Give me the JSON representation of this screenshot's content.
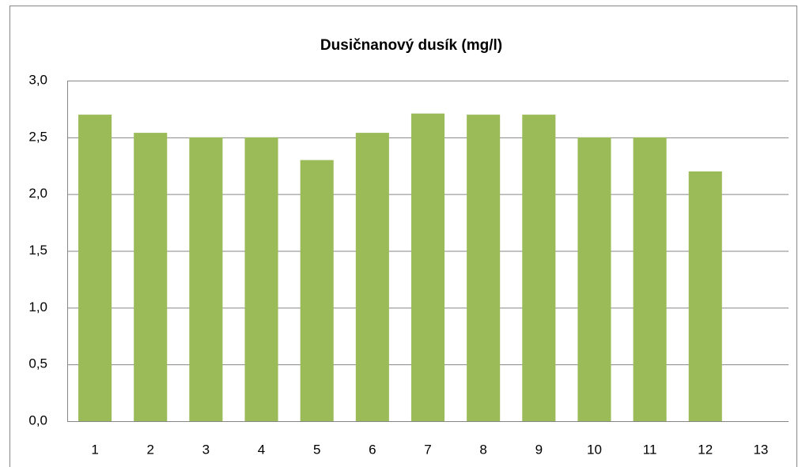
{
  "chart_data": {
    "type": "bar",
    "title": "Dusičnanový dusík (mg/l)",
    "categories": [
      "1",
      "2",
      "3",
      "4",
      "5",
      "6",
      "7",
      "8",
      "9",
      "10",
      "11",
      "12",
      "13"
    ],
    "values": [
      2.7,
      2.54,
      2.5,
      2.5,
      2.3,
      2.54,
      2.71,
      2.7,
      2.7,
      2.5,
      2.5,
      2.2,
      null
    ],
    "color": "#9bbb59",
    "ylim": [
      0,
      3
    ],
    "yticks": [
      {
        "value": 0,
        "label": "0,0"
      },
      {
        "value": 0.5,
        "label": "0,5"
      },
      {
        "value": 1,
        "label": "1,0"
      },
      {
        "value": 1.5,
        "label": "1,5"
      },
      {
        "value": 2,
        "label": "2,0"
      },
      {
        "value": 2.5,
        "label": "2,5"
      },
      {
        "value": 3,
        "label": "3,0"
      }
    ],
    "grid": true
  }
}
